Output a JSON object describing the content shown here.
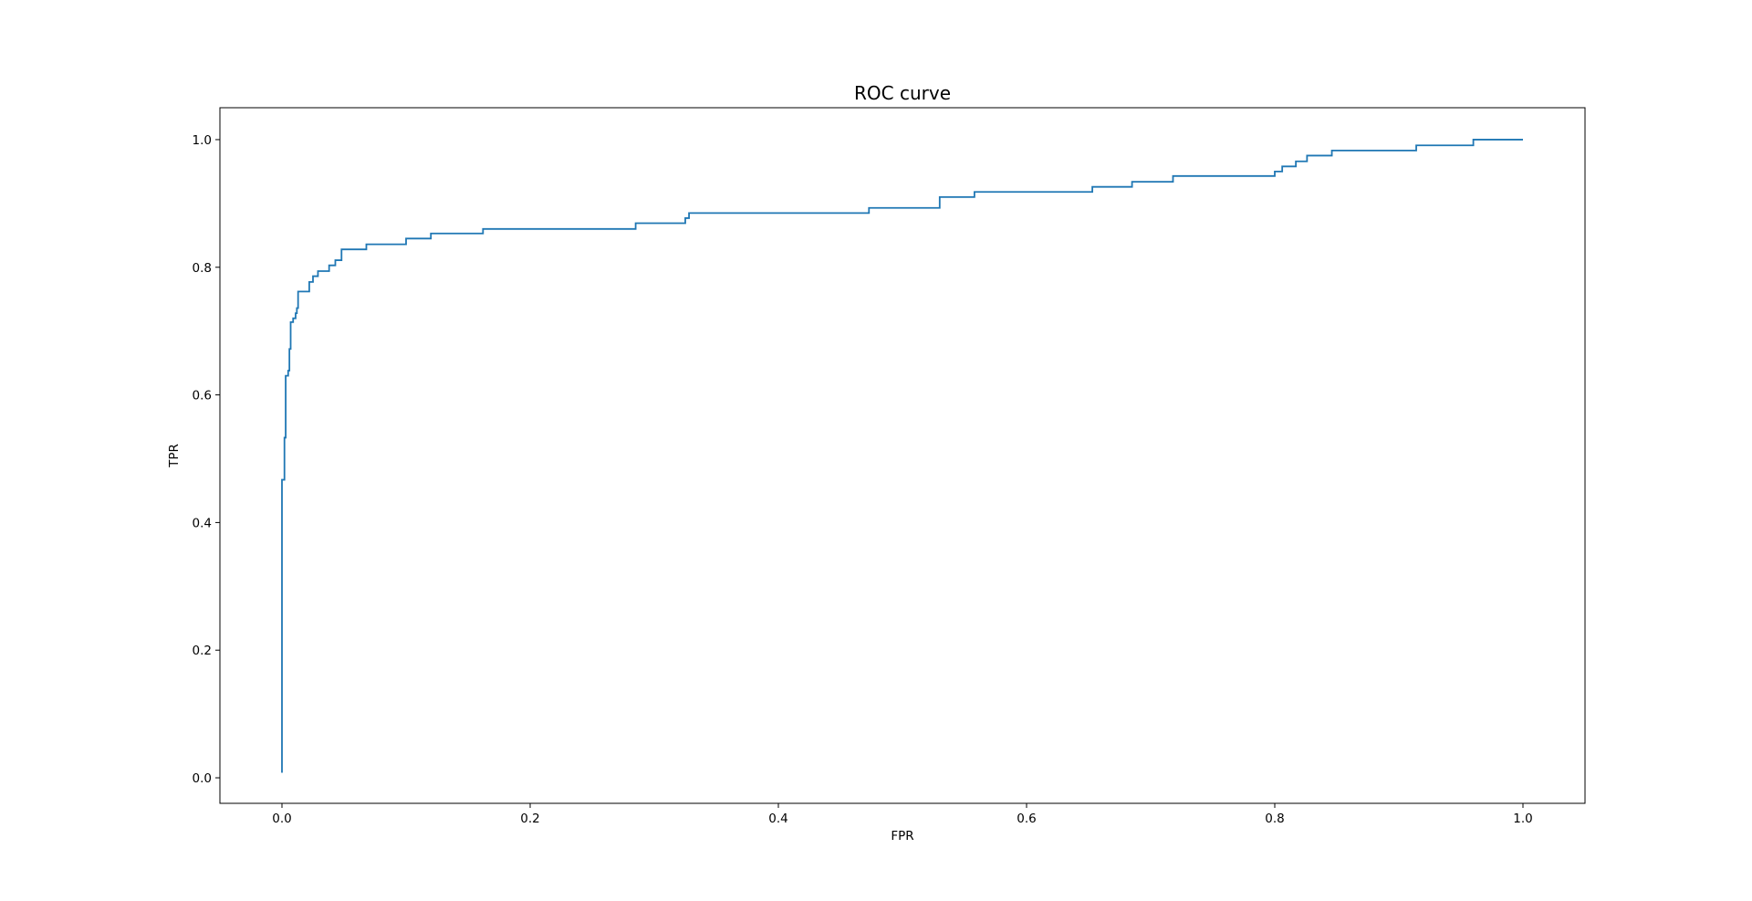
{
  "chart_data": {
    "type": "line",
    "title": "ROC curve",
    "xlabel": "FPR",
    "ylabel": "TPR",
    "xlim": [
      -0.05,
      1.05
    ],
    "ylim": [
      -0.04,
      1.05
    ],
    "grid": false,
    "x_ticks": [
      0.0,
      0.2,
      0.4,
      0.6,
      0.8,
      1.0
    ],
    "y_ticks": [
      0.0,
      0.2,
      0.4,
      0.6,
      0.8,
      1.0
    ],
    "x_tick_labels": [
      "0.0",
      "0.2",
      "0.4",
      "0.6",
      "0.8",
      "1.0"
    ],
    "y_tick_labels": [
      "0.0",
      "0.2",
      "0.4",
      "0.6",
      "0.8",
      "1.0"
    ],
    "line_color": "#1f77b4",
    "series": [
      {
        "points": [
          [
            0.0,
            0.008
          ],
          [
            0.0,
            0.467
          ],
          [
            0.002,
            0.467
          ],
          [
            0.002,
            0.533
          ],
          [
            0.003,
            0.533
          ],
          [
            0.003,
            0.63
          ],
          [
            0.005,
            0.63
          ],
          [
            0.005,
            0.638
          ],
          [
            0.006,
            0.638
          ],
          [
            0.006,
            0.672
          ],
          [
            0.007,
            0.672
          ],
          [
            0.007,
            0.714
          ],
          [
            0.009,
            0.714
          ],
          [
            0.009,
            0.72
          ],
          [
            0.011,
            0.72
          ],
          [
            0.011,
            0.728
          ],
          [
            0.012,
            0.728
          ],
          [
            0.012,
            0.736
          ],
          [
            0.013,
            0.736
          ],
          [
            0.013,
            0.762
          ],
          [
            0.022,
            0.762
          ],
          [
            0.022,
            0.777
          ],
          [
            0.025,
            0.777
          ],
          [
            0.025,
            0.786
          ],
          [
            0.029,
            0.786
          ],
          [
            0.029,
            0.794
          ],
          [
            0.038,
            0.794
          ],
          [
            0.038,
            0.803
          ],
          [
            0.043,
            0.803
          ],
          [
            0.043,
            0.811
          ],
          [
            0.048,
            0.811
          ],
          [
            0.048,
            0.828
          ],
          [
            0.068,
            0.828
          ],
          [
            0.068,
            0.836
          ],
          [
            0.1,
            0.836
          ],
          [
            0.1,
            0.845
          ],
          [
            0.12,
            0.845
          ],
          [
            0.12,
            0.853
          ],
          [
            0.162,
            0.853
          ],
          [
            0.162,
            0.86
          ],
          [
            0.285,
            0.86
          ],
          [
            0.285,
            0.869
          ],
          [
            0.325,
            0.869
          ],
          [
            0.325,
            0.877
          ],
          [
            0.328,
            0.877
          ],
          [
            0.328,
            0.885
          ],
          [
            0.473,
            0.885
          ],
          [
            0.473,
            0.893
          ],
          [
            0.53,
            0.893
          ],
          [
            0.53,
            0.91
          ],
          [
            0.558,
            0.91
          ],
          [
            0.558,
            0.918
          ],
          [
            0.653,
            0.918
          ],
          [
            0.653,
            0.926
          ],
          [
            0.685,
            0.926
          ],
          [
            0.685,
            0.934
          ],
          [
            0.718,
            0.934
          ],
          [
            0.718,
            0.943
          ],
          [
            0.8,
            0.943
          ],
          [
            0.8,
            0.95
          ],
          [
            0.806,
            0.95
          ],
          [
            0.806,
            0.958
          ],
          [
            0.817,
            0.958
          ],
          [
            0.817,
            0.966
          ],
          [
            0.826,
            0.966
          ],
          [
            0.826,
            0.975
          ],
          [
            0.846,
            0.975
          ],
          [
            0.846,
            0.983
          ],
          [
            0.914,
            0.983
          ],
          [
            0.914,
            0.991
          ],
          [
            0.96,
            0.991
          ],
          [
            0.96,
            1.0
          ],
          [
            1.0,
            1.0
          ]
        ]
      }
    ]
  }
}
